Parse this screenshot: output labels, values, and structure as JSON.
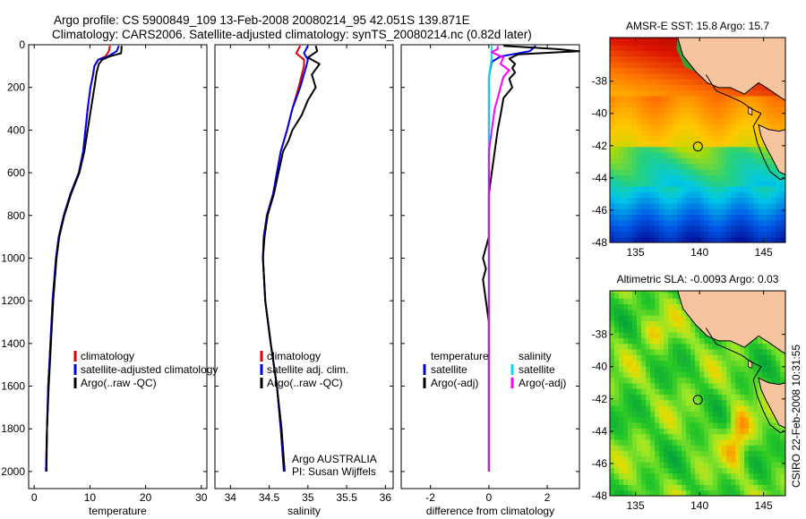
{
  "header": {
    "line1": "Argo profile: CS 5900849_109 13-Feb-2008 20080214_95 42.051S 139.871E",
    "line2": "Climatology: CARS2006. Satellite-adjusted climatology: synTS_20080214.nc (0.82d later)"
  },
  "side_label": "CSIRO 22-Feb-2008 10:31:55",
  "colors": {
    "clim": "#e00000",
    "sat": "#0000ee",
    "argo": "#000000",
    "sat_sal": "#00e0e0",
    "argo_sal": "#ff00ff",
    "land": "#f6c49e"
  },
  "chart_data": [
    {
      "id": "temperature",
      "type": "line",
      "xlabel": "temperature",
      "xlim": [
        -1,
        31
      ],
      "xticks": [
        0,
        10,
        20,
        30
      ],
      "ylim": [
        0,
        2080
      ],
      "yticks": [
        0,
        200,
        400,
        600,
        800,
        1000,
        1200,
        1400,
        1600,
        1800,
        2000
      ],
      "legend": {
        "entries": [
          "climatology",
          "satellite-adjusted climatology",
          "Argo(..raw -QC)"
        ],
        "colors": [
          "clim",
          "sat",
          "argo"
        ]
      },
      "series": [
        {
          "name": "climatology",
          "color": "clim",
          "points": [
            [
              13.6,
              5
            ],
            [
              13.4,
              30
            ],
            [
              12.8,
              55
            ],
            [
              11.5,
              70
            ],
            [
              10.8,
              100
            ],
            [
              10.5,
              150
            ],
            [
              10.1,
              200
            ],
            [
              9.6,
              300
            ],
            [
              9.2,
              400
            ],
            [
              8.8,
              500
            ],
            [
              8.0,
              600
            ],
            [
              6.5,
              700
            ],
            [
              5.3,
              800
            ],
            [
              4.4,
              900
            ],
            [
              3.9,
              1000
            ],
            [
              3.3,
              1200
            ],
            [
              2.9,
              1400
            ],
            [
              2.5,
              1600
            ],
            [
              2.3,
              1800
            ],
            [
              2.1,
              2000
            ]
          ]
        },
        {
          "name": "satellite-adjusted climatology",
          "color": "sat",
          "points": [
            [
              15.2,
              5
            ],
            [
              14.8,
              30
            ],
            [
              13.2,
              55
            ],
            [
              11.5,
              70
            ],
            [
              10.8,
              100
            ],
            [
              10.5,
              150
            ],
            [
              10.1,
              200
            ],
            [
              9.6,
              300
            ],
            [
              9.2,
              400
            ],
            [
              8.8,
              500
            ],
            [
              8.0,
              600
            ],
            [
              6.5,
              700
            ],
            [
              5.3,
              800
            ],
            [
              4.4,
              900
            ],
            [
              3.9,
              1000
            ],
            [
              3.3,
              1200
            ],
            [
              2.9,
              1400
            ],
            [
              2.5,
              1600
            ],
            [
              2.3,
              1800
            ],
            [
              2.1,
              2000
            ]
          ]
        },
        {
          "name": "Argo(..raw -QC)",
          "color": "argo",
          "points": [
            [
              15.7,
              5
            ],
            [
              15.6,
              40
            ],
            [
              13.5,
              55
            ],
            [
              12.2,
              70
            ],
            [
              11.6,
              90
            ],
            [
              11.2,
              130
            ],
            [
              10.8,
              200
            ],
            [
              10.2,
              300
            ],
            [
              9.6,
              400
            ],
            [
              9.0,
              500
            ],
            [
              8.1,
              600
            ],
            [
              6.6,
              700
            ],
            [
              5.4,
              800
            ],
            [
              4.5,
              900
            ],
            [
              4.0,
              1000
            ],
            [
              3.4,
              1200
            ],
            [
              3.0,
              1400
            ],
            [
              2.6,
              1600
            ],
            [
              2.3,
              1800
            ],
            [
              2.2,
              2000
            ]
          ]
        }
      ]
    },
    {
      "id": "salinity",
      "type": "line",
      "xlabel": "salinity",
      "xlim": [
        33.8,
        36.1
      ],
      "xticks": [
        34,
        34.5,
        35,
        35.5,
        36
      ],
      "ylim": [
        0,
        2080
      ],
      "yticks": [
        0,
        200,
        400,
        600,
        800,
        1000,
        1200,
        1400,
        1600,
        1800,
        2000
      ],
      "legend": {
        "entries": [
          "climatology",
          "satellite adj. clim.",
          "Argo(..raw -QC)"
        ],
        "colors": [
          "clim",
          "sat",
          "argo"
        ]
      },
      "annotation": {
        "lines": [
          "Argo AUSTRALIA",
          "PI: Susan Wijffels"
        ]
      },
      "series": [
        {
          "name": "climatology",
          "color": "clim",
          "points": [
            [
              34.9,
              5
            ],
            [
              34.85,
              40
            ],
            [
              34.95,
              70
            ],
            [
              34.95,
              100
            ],
            [
              34.88,
              200
            ],
            [
              34.8,
              300
            ],
            [
              34.73,
              400
            ],
            [
              34.65,
              500
            ],
            [
              34.6,
              600
            ],
            [
              34.55,
              700
            ],
            [
              34.47,
              800
            ],
            [
              34.43,
              900
            ],
            [
              34.42,
              1000
            ],
            [
              34.45,
              1200
            ],
            [
              34.52,
              1400
            ],
            [
              34.6,
              1600
            ],
            [
              34.65,
              1800
            ],
            [
              34.69,
              2000
            ]
          ]
        },
        {
          "name": "satellite adj. clim.",
          "color": "sat",
          "points": [
            [
              35.0,
              5
            ],
            [
              34.95,
              40
            ],
            [
              35.0,
              70
            ],
            [
              34.98,
              100
            ],
            [
              34.9,
              200
            ],
            [
              34.8,
              300
            ],
            [
              34.73,
              400
            ],
            [
              34.65,
              500
            ],
            [
              34.6,
              600
            ],
            [
              34.55,
              700
            ],
            [
              34.47,
              800
            ],
            [
              34.43,
              900
            ],
            [
              34.42,
              1000
            ],
            [
              34.45,
              1200
            ],
            [
              34.52,
              1400
            ],
            [
              34.6,
              1600
            ],
            [
              34.65,
              1800
            ],
            [
              34.69,
              2000
            ]
          ]
        },
        {
          "name": "Argo(..raw -QC)",
          "color": "argo",
          "points": [
            [
              35.1,
              5
            ],
            [
              35.12,
              30
            ],
            [
              35.0,
              60
            ],
            [
              35.15,
              90
            ],
            [
              35.05,
              140
            ],
            [
              35.1,
              200
            ],
            [
              35.0,
              260
            ],
            [
              34.92,
              330
            ],
            [
              34.8,
              400
            ],
            [
              34.75,
              450
            ],
            [
              34.68,
              500
            ],
            [
              34.62,
              600
            ],
            [
              34.56,
              700
            ],
            [
              34.48,
              800
            ],
            [
              34.44,
              900
            ],
            [
              34.42,
              1000
            ],
            [
              34.45,
              1200
            ],
            [
              34.52,
              1400
            ],
            [
              34.6,
              1600
            ],
            [
              34.66,
              1800
            ],
            [
              34.7,
              2000
            ]
          ]
        }
      ]
    },
    {
      "id": "difference",
      "type": "line",
      "xlabel": "difference from climatology",
      "xlim": [
        -3,
        3.1
      ],
      "xticks": [
        -2,
        0,
        2
      ],
      "ylim": [
        0,
        2080
      ],
      "yticks": [
        0,
        200,
        400,
        600,
        800,
        1000,
        1200,
        1400,
        1600,
        1800,
        2000
      ],
      "legend": {
        "left": {
          "title": "temperature",
          "entries": [
            "satellite",
            "Argo(-adj)"
          ],
          "colors": [
            "sat",
            "argo"
          ]
        },
        "right": {
          "title": "salinity",
          "entries": [
            "satellite",
            "Argo(-adj)"
          ],
          "colors": [
            "sat_sal",
            "argo_sal"
          ]
        }
      },
      "series": [
        {
          "name": "temperature satellite",
          "color": "sat",
          "points": [
            [
              1.6,
              5
            ],
            [
              1.4,
              30
            ],
            [
              0.4,
              55
            ],
            [
              0.1,
              80
            ],
            [
              0.0,
              150
            ],
            [
              0.0,
              2000
            ]
          ]
        },
        {
          "name": "salinity satellite",
          "color": "sat_sal",
          "points": [
            [
              0.1,
              5
            ],
            [
              0.1,
              60
            ],
            [
              0.0,
              150
            ],
            [
              0.0,
              1000
            ],
            [
              0.0,
              2000
            ]
          ]
        },
        {
          "name": "temperature Argo(-adj)",
          "color": "argo",
          "points": [
            [
              0.5,
              5
            ],
            [
              2.3,
              20
            ],
            [
              3.1,
              30
            ],
            [
              1.0,
              45
            ],
            [
              0.7,
              65
            ],
            [
              0.9,
              90
            ],
            [
              0.8,
              110
            ],
            [
              0.9,
              130
            ],
            [
              0.7,
              160
            ],
            [
              0.8,
              200
            ],
            [
              0.5,
              250
            ],
            [
              0.4,
              330
            ],
            [
              0.3,
              400
            ],
            [
              0.2,
              500
            ],
            [
              0.1,
              600
            ],
            [
              0.0,
              700
            ],
            [
              0.0,
              900
            ],
            [
              -0.1,
              950
            ],
            [
              -0.2,
              1000
            ],
            [
              -0.1,
              1050
            ],
            [
              -0.2,
              1100
            ],
            [
              -0.1,
              1200
            ],
            [
              0.0,
              1300
            ],
            [
              0.0,
              1400
            ],
            [
              0.0,
              1600
            ],
            [
              0.0,
              2000
            ]
          ]
        },
        {
          "name": "salinity Argo(-adj)",
          "color": "argo_sal",
          "points": [
            [
              0.3,
              5
            ],
            [
              0.3,
              20
            ],
            [
              0.1,
              35
            ],
            [
              0.5,
              60
            ],
            [
              0.4,
              90
            ],
            [
              0.7,
              120
            ],
            [
              0.5,
              150
            ],
            [
              0.4,
              200
            ],
            [
              0.3,
              250
            ],
            [
              0.2,
              300
            ],
            [
              0.1,
              400
            ],
            [
              0.0,
              500
            ],
            [
              0.0,
              2000
            ]
          ]
        }
      ]
    },
    {
      "id": "sst-map",
      "type": "heatmap",
      "title": "AMSR-E SST: 15.8 Argo: 15.7",
      "xlim": [
        133,
        146.7
      ],
      "ylim": [
        -48,
        -35.3
      ],
      "xticks": [
        135,
        140,
        145
      ],
      "yticks": [
        -38,
        -40,
        -42,
        -44,
        -46,
        -48
      ],
      "marker": {
        "lon": 139.87,
        "lat": -42.05
      },
      "field": "sst"
    },
    {
      "id": "sla-map",
      "type": "heatmap",
      "title": "Altimetric SLA: -0.0093 Argo: 0.03",
      "xlim": [
        133,
        146.7
      ],
      "ylim": [
        -48,
        -35.3
      ],
      "xticks": [
        135,
        140,
        145
      ],
      "yticks": [
        -38,
        -40,
        -42,
        -44,
        -46,
        -48
      ],
      "marker": {
        "lon": 139.87,
        "lat": -42.05
      },
      "field": "sla"
    }
  ]
}
